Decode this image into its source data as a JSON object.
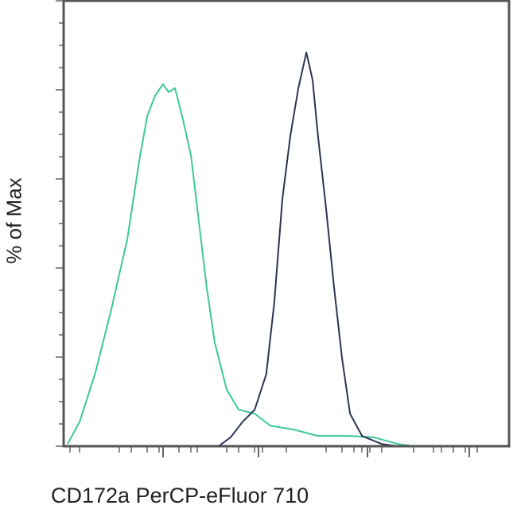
{
  "chart_data": {
    "type": "line",
    "title": "",
    "xlabel": "CD172a PerCP-eFluor 710",
    "ylabel": "% of Max",
    "xscale": "log (unlabeled ticks)",
    "xlim": [
      0,
      1000
    ],
    "ylim": [
      0,
      100
    ],
    "grid": false,
    "legend": "none",
    "series": [
      {
        "color": "#3dc79b",
        "x": [
          9,
          36,
          71,
          107,
          143,
          170,
          188,
          205,
          223,
          236,
          250,
          268,
          286,
          304,
          321,
          339,
          366,
          393,
          429,
          464,
          518,
          571,
          643,
          696,
          750,
          786
        ],
        "y": [
          0.5,
          5.5,
          16.4,
          30.7,
          46.5,
          64.3,
          74.2,
          78.6,
          81.3,
          79.5,
          80.4,
          73.3,
          65.2,
          50.1,
          35.8,
          23.4,
          12.7,
          8.2,
          7.3,
          4.6,
          3.7,
          2.3,
          2.3,
          2.0,
          0.5,
          0
        ]
      },
      {
        "color": "#2b3552",
        "x": [
          348,
          375,
          402,
          429,
          455,
          473,
          491,
          509,
          527,
          545,
          559,
          571,
          589,
          607,
          625,
          643,
          670,
          714,
          750
        ],
        "y": [
          0,
          2.0,
          5.5,
          8.2,
          16.2,
          32.3,
          55.4,
          69.7,
          80.4,
          88.4,
          82.2,
          69.7,
          53.6,
          35.8,
          19.8,
          7.3,
          2.3,
          0.5,
          0
        ]
      }
    ]
  }
}
